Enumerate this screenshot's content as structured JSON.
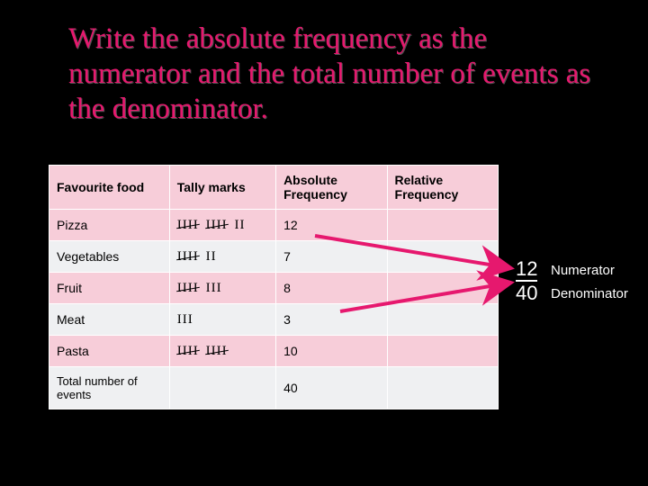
{
  "title": "Write the absolute frequency as the numerator and the total number of events as the denominator.",
  "headers": {
    "food": "Favourite food",
    "tally": "Tally marks",
    "abs": "Absolute Frequency",
    "rel": "Relative Frequency"
  },
  "rows": [
    {
      "food": "Pizza",
      "tally": [
        5,
        5,
        2
      ],
      "abs": "12"
    },
    {
      "food": "Vegetables",
      "tally": [
        5,
        2
      ],
      "abs": "7"
    },
    {
      "food": "Fruit",
      "tally": [
        5,
        3
      ],
      "abs": "8"
    },
    {
      "food": "Meat",
      "tally": [
        3
      ],
      "abs": "3"
    },
    {
      "food": "Pasta",
      "tally": [
        5,
        5
      ],
      "abs": "10"
    }
  ],
  "totalLabel": "Total number of events",
  "totalValue": "40",
  "fraction": {
    "num": "12",
    "den": "40"
  },
  "fractionLabels": {
    "num": "Numerator",
    "den": "Denominator"
  },
  "colors": {
    "accent": "#e6186e",
    "arrow": "#e6186e",
    "tableLight": "#f7cdd9",
    "tableGrey": "#eff0f2",
    "background": "#000000"
  }
}
